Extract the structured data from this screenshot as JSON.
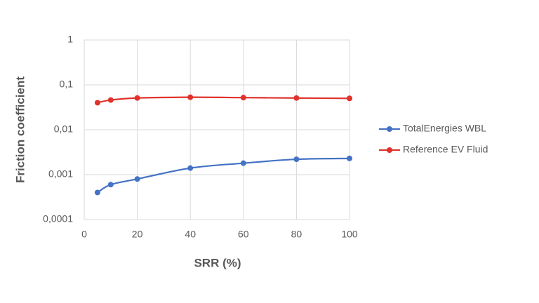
{
  "chart_data": {
    "type": "line",
    "x_label": "SRR (%)",
    "y_label": "Friction coefficient",
    "x": [
      5,
      10,
      20,
      40,
      60,
      80,
      100
    ],
    "series": [
      {
        "name": "TotalEnergies WBL",
        "color": "#4472c4",
        "values": [
          0.0004,
          0.0006,
          0.0008,
          0.0014,
          0.0018,
          0.0022,
          0.0023
        ]
      },
      {
        "name": "Reference EV Fluid",
        "color": "#e0322b",
        "values": [
          0.04,
          0.046,
          0.051,
          0.053,
          0.052,
          0.051,
          0.05
        ]
      }
    ],
    "xlim": [
      0,
      100
    ],
    "xticks": [
      0,
      20,
      40,
      60,
      80,
      100
    ],
    "ylim": [
      0.0001,
      1
    ],
    "yticks": [
      {
        "value": 0.0001,
        "label": "0,0001"
      },
      {
        "value": 0.001,
        "label": "0,001"
      },
      {
        "value": 0.01,
        "label": "0,01"
      },
      {
        "value": 0.1,
        "label": "0,1"
      },
      1
    ],
    "log_y": true,
    "grid": true,
    "legend": "right"
  }
}
